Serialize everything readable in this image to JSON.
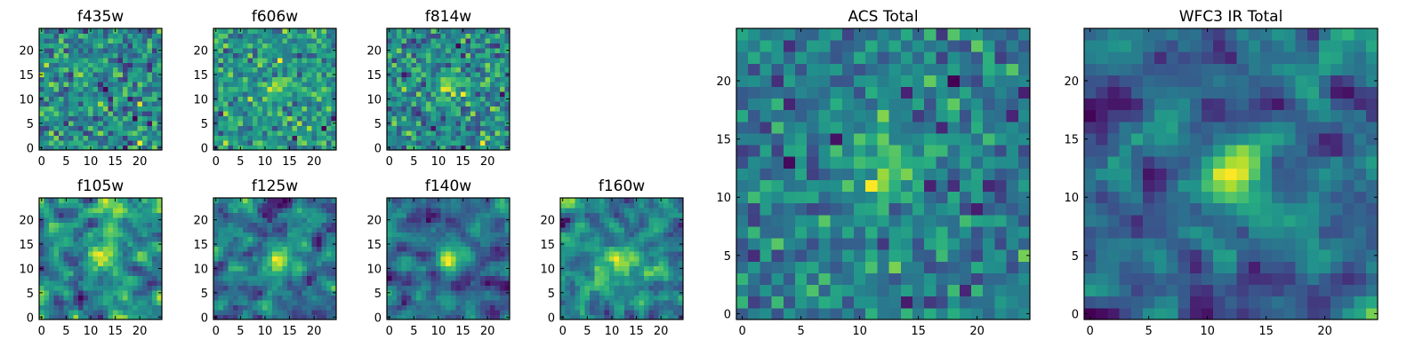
{
  "figure_title": "",
  "chart_data": [
    {
      "type": "heatmap",
      "title": "f435w",
      "xticks": [
        "0",
        "5",
        "10",
        "15",
        "20"
      ],
      "yticks": [
        "0",
        "5",
        "10",
        "15",
        "20"
      ],
      "xlim": [
        -0.5,
        24.5
      ],
      "ylim": [
        -0.5,
        24.5
      ],
      "grid": [
        25,
        25
      ],
      "colormap": "viridis",
      "source_peak": null,
      "noise": 0.95,
      "smooth": 0,
      "seed": 11
    },
    {
      "type": "heatmap",
      "title": "f606w",
      "xticks": [
        "0",
        "5",
        "10",
        "15",
        "20"
      ],
      "yticks": [
        "0",
        "5",
        "10",
        "15",
        "20"
      ],
      "xlim": [
        -0.5,
        24.5
      ],
      "ylim": [
        -0.5,
        24.5
      ],
      "grid": [
        25,
        25
      ],
      "colormap": "viridis",
      "source_peak": [
        12,
        12
      ],
      "noise": 0.85,
      "smooth": 0,
      "seed": 23
    },
    {
      "type": "heatmap",
      "title": "f814w",
      "xticks": [
        "0",
        "5",
        "10",
        "15",
        "20"
      ],
      "yticks": [
        "0",
        "5",
        "10",
        "15",
        "20"
      ],
      "xlim": [
        -0.5,
        24.5
      ],
      "ylim": [
        -0.5,
        24.5
      ],
      "grid": [
        25,
        25
      ],
      "colormap": "viridis",
      "source_peak": [
        12,
        12
      ],
      "noise": 0.8,
      "smooth": 0,
      "seed": 37
    },
    {
      "type": "heatmap",
      "title": "f105w",
      "xticks": [
        "0",
        "5",
        "10",
        "15",
        "20"
      ],
      "yticks": [
        "0",
        "5",
        "10",
        "15",
        "20"
      ],
      "xlim": [
        -0.5,
        24.5
      ],
      "ylim": [
        -0.5,
        24.5
      ],
      "grid": [
        25,
        25
      ],
      "colormap": "viridis",
      "source_peak": [
        12,
        12
      ],
      "noise": 0.7,
      "smooth": 1,
      "seed": 41
    },
    {
      "type": "heatmap",
      "title": "f125w",
      "xticks": [
        "0",
        "5",
        "10",
        "15",
        "20"
      ],
      "yticks": [
        "0",
        "5",
        "10",
        "15",
        "20"
      ],
      "xlim": [
        -0.5,
        24.5
      ],
      "ylim": [
        -0.5,
        24.5
      ],
      "grid": [
        25,
        25
      ],
      "colormap": "viridis",
      "source_peak": [
        12,
        12
      ],
      "noise": 0.7,
      "smooth": 1,
      "seed": 53
    },
    {
      "type": "heatmap",
      "title": "f140w",
      "xticks": [
        "0",
        "5",
        "10",
        "15",
        "20"
      ],
      "yticks": [
        "0",
        "5",
        "10",
        "15",
        "20"
      ],
      "xlim": [
        -0.5,
        24.5
      ],
      "ylim": [
        -0.5,
        24.5
      ],
      "grid": [
        25,
        25
      ],
      "colormap": "viridis",
      "source_peak": [
        12,
        12
      ],
      "noise": 0.7,
      "smooth": 1,
      "seed": 67
    },
    {
      "type": "heatmap",
      "title": "f160w",
      "xticks": [
        "0",
        "5",
        "10",
        "15",
        "20"
      ],
      "yticks": [
        "0",
        "5",
        "10",
        "15",
        "20"
      ],
      "xlim": [
        -0.5,
        24.5
      ],
      "ylim": [
        -0.5,
        24.5
      ],
      "grid": [
        25,
        25
      ],
      "colormap": "viridis",
      "source_peak": [
        12,
        12
      ],
      "noise": 0.75,
      "smooth": 1,
      "seed": 79
    },
    {
      "type": "heatmap",
      "title": "ACS Total",
      "xticks": [
        "0",
        "5",
        "10",
        "15",
        "20"
      ],
      "yticks": [
        "0",
        "5",
        "10",
        "15",
        "20"
      ],
      "xlim": [
        -0.5,
        24.5
      ],
      "ylim": [
        -0.5,
        24.5
      ],
      "grid": [
        25,
        25
      ],
      "colormap": "viridis",
      "source_peak": [
        12,
        12
      ],
      "noise": 0.55,
      "smooth": 0,
      "seed": 83
    },
    {
      "type": "heatmap",
      "title": "WFC3 IR Total",
      "xticks": [
        "0",
        "5",
        "10",
        "15",
        "20"
      ],
      "yticks": [
        "0",
        "5",
        "10",
        "15",
        "20"
      ],
      "xlim": [
        -0.5,
        24.5
      ],
      "ylim": [
        -0.5,
        24.5
      ],
      "grid": [
        25,
        25
      ],
      "colormap": "viridis",
      "source_peak": [
        12,
        12
      ],
      "noise": 0.45,
      "smooth": 1,
      "seed": 97
    }
  ]
}
